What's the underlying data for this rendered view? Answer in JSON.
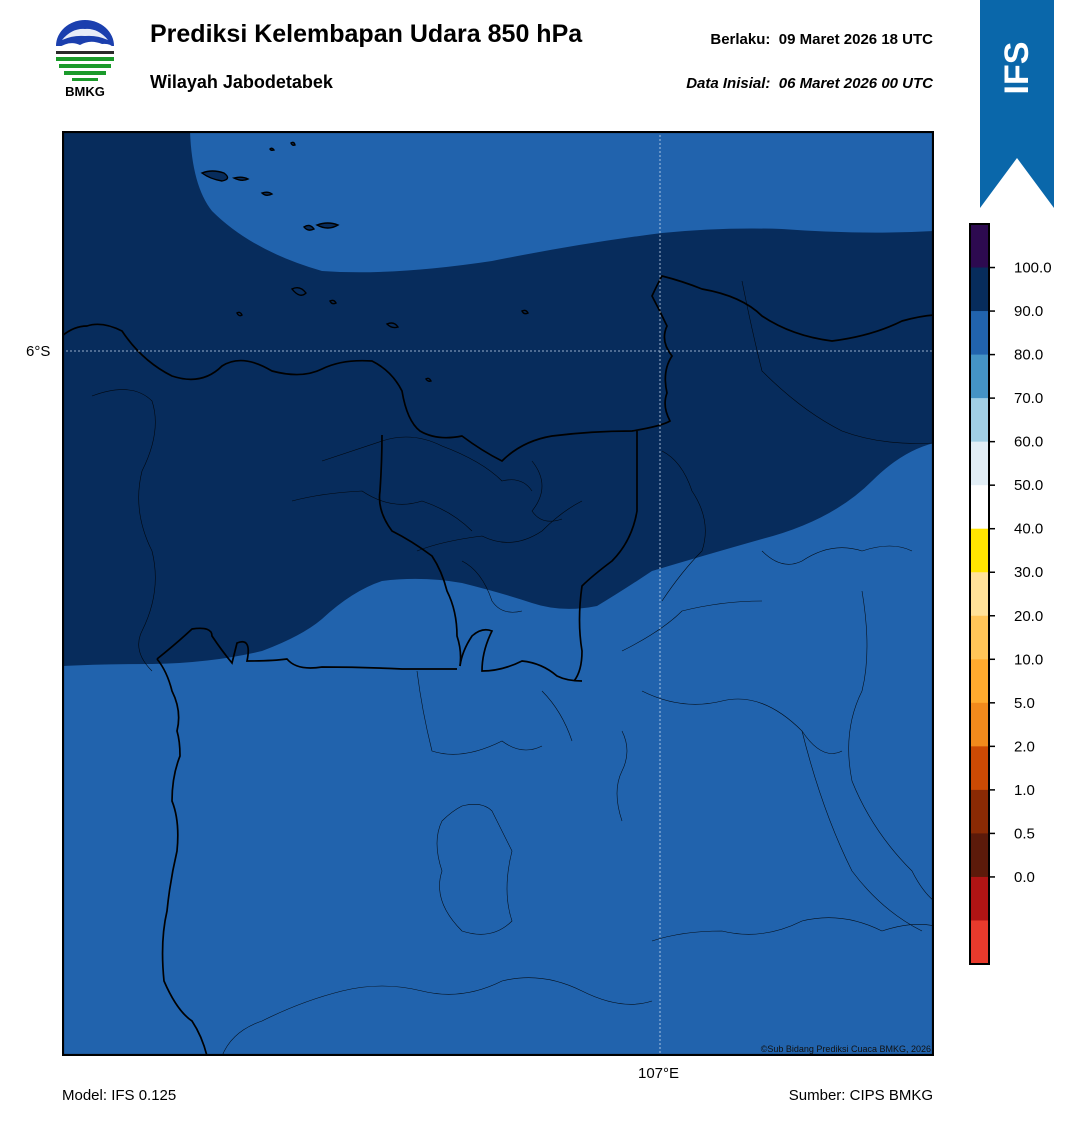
{
  "header": {
    "logo_text": "BMKG",
    "title": "Prediksi Kelembapan Udara 850 hPa",
    "region": "Wilayah Jabodetabek",
    "valid_label": "Berlaku:",
    "valid_time": "09 Maret 2026 18 UTC",
    "init_label": "Data Inisial:",
    "init_time": "06 Maret 2026 00 UTC"
  },
  "ribbon": {
    "text": "IFS",
    "color": "#0a67aa"
  },
  "map": {
    "lat_label": "6°S",
    "lon_label": "107°E",
    "copyright": "©Sub Bidang Prediksi Cuaca BMKG, 2026",
    "colors": {
      "dark": "#072c5c",
      "mid": "#2163ad"
    }
  },
  "footer": {
    "model": "Model: IFS 0.125",
    "source": "Sumber: CIPS BMKG"
  },
  "colorbar": {
    "ticks": [
      "100.0",
      "90.0",
      "80.0",
      "70.0",
      "60.0",
      "50.0",
      "40.0",
      "30.0",
      "20.0",
      "10.0",
      "5.0",
      "2.0",
      "1.0",
      "0.5",
      "0.0"
    ],
    "colors": [
      "#2d0a50",
      "#072c5c",
      "#2163ad",
      "#4493c5",
      "#a0cfe5",
      "#e2eef6",
      "#ffffff",
      "#ffe400",
      "#ffe198",
      "#ffc558",
      "#ffab2e",
      "#f28a1c",
      "#cc4a04",
      "#8a2a04",
      "#5c1a0a",
      "#b01414",
      "#e83a2c"
    ]
  }
}
